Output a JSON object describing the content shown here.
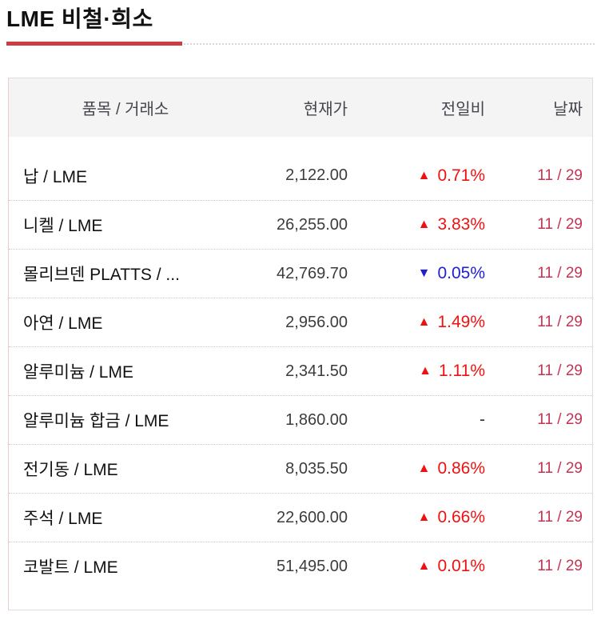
{
  "page": {
    "title": "LME 비철·희소"
  },
  "colors": {
    "up": "#ee1111",
    "down": "#2121cf",
    "date": "#c43353",
    "accent": "#cf3d42"
  },
  "table": {
    "headers": {
      "item": "품목 / 거래소",
      "price": "현재가",
      "change": "전일비",
      "date": "날짜"
    },
    "rows": [
      {
        "item": "납 / LME",
        "price": "2,122.00",
        "direction": "up",
        "arrow": "▲",
        "change": "0.71%",
        "date": "11 / 29"
      },
      {
        "item": "니켈 / LME",
        "price": "26,255.00",
        "direction": "up",
        "arrow": "▲",
        "change": "3.83%",
        "date": "11 / 29"
      },
      {
        "item": "몰리브덴 PLATTS / ...",
        "price": "42,769.70",
        "direction": "down",
        "arrow": "▼",
        "change": "0.05%",
        "date": "11 / 29"
      },
      {
        "item": "아연 / LME",
        "price": "2,956.00",
        "direction": "up",
        "arrow": "▲",
        "change": "1.49%",
        "date": "11 / 29"
      },
      {
        "item": "알루미늄 / LME",
        "price": "2,341.50",
        "direction": "up",
        "arrow": "▲",
        "change": "1.11%",
        "date": "11 / 29"
      },
      {
        "item": "알루미늄 합금 / LME",
        "price": "1,860.00",
        "direction": "flat",
        "arrow": "",
        "change": "-",
        "date": "11 / 29"
      },
      {
        "item": "전기동 / LME",
        "price": "8,035.50",
        "direction": "up",
        "arrow": "▲",
        "change": "0.86%",
        "date": "11 / 29"
      },
      {
        "item": "주석 / LME",
        "price": "22,600.00",
        "direction": "up",
        "arrow": "▲",
        "change": "0.66%",
        "date": "11 / 29"
      },
      {
        "item": "코발트 / LME",
        "price": "51,495.00",
        "direction": "up",
        "arrow": "▲",
        "change": "0.01%",
        "date": "11 / 29"
      }
    ]
  }
}
